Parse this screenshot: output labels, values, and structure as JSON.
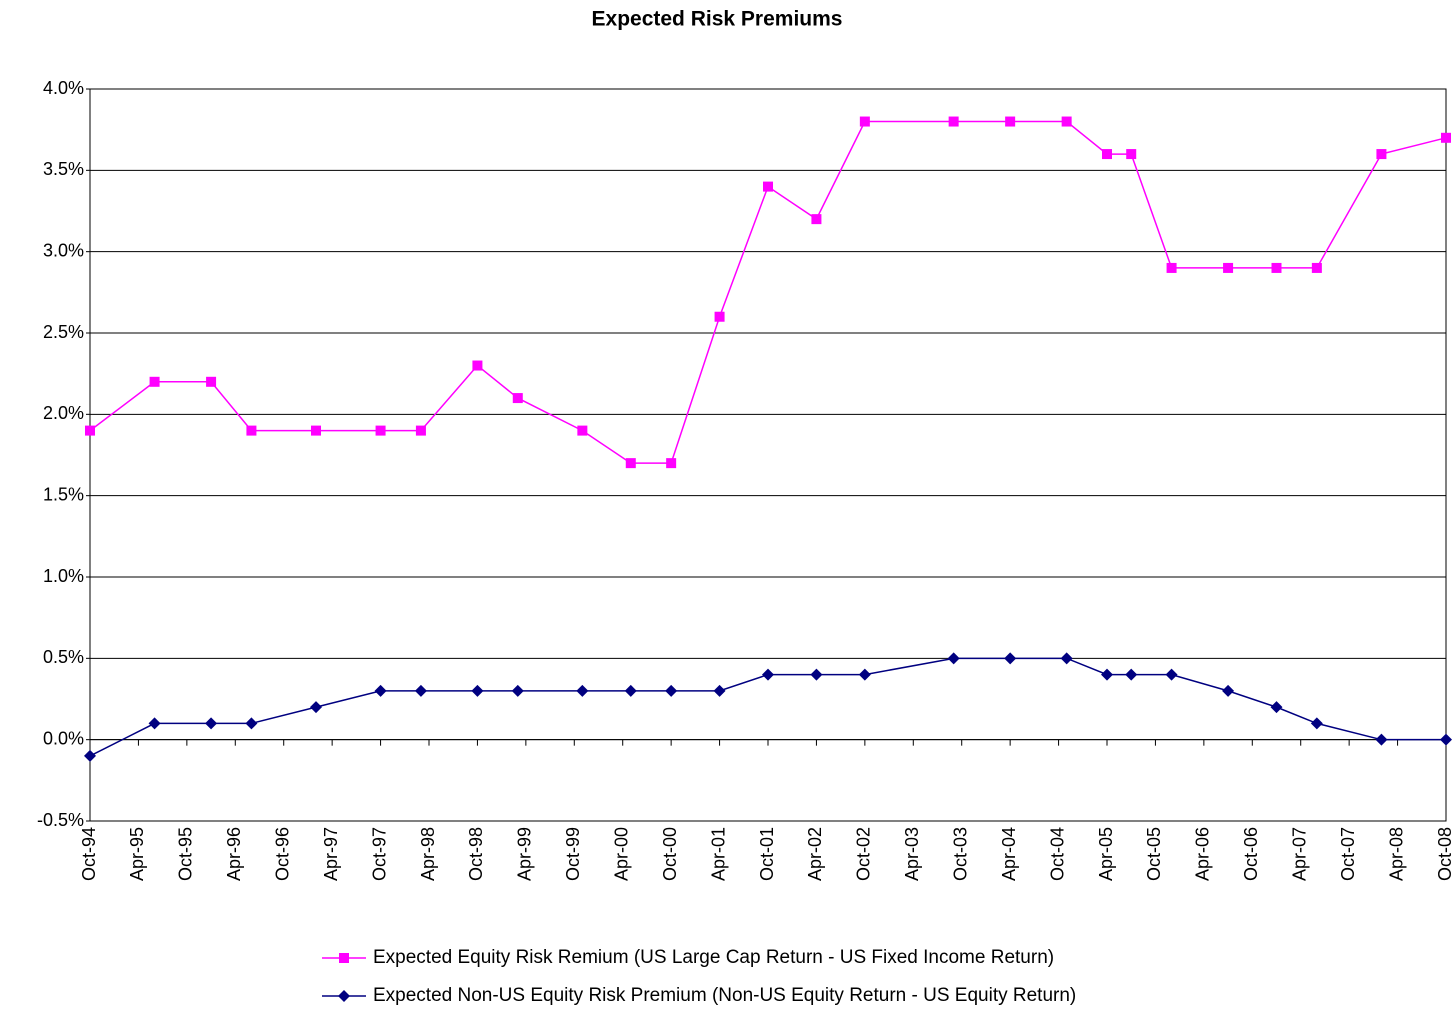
{
  "chart_data": {
    "type": "line",
    "title": "Expected Risk Premiums",
    "x": [
      "1994-10",
      "1995-06",
      "1996-01",
      "1996-06",
      "1997-02",
      "1997-10",
      "1998-03",
      "1998-10",
      "1999-03",
      "1999-11",
      "2000-05",
      "2000-10",
      "2001-04",
      "2001-10",
      "2002-04",
      "2002-10",
      "2003-09",
      "2004-04",
      "2004-11",
      "2005-04",
      "2005-07",
      "2005-12",
      "2006-07",
      "2007-01",
      "2007-06",
      "2008-02",
      "2008-10"
    ],
    "series": [
      {
        "name": "Expected Equity Risk Remium (US Large Cap Return - US Fixed Income Return)",
        "color": "#ff00ff",
        "marker": "square",
        "values": [
          1.9,
          2.2,
          2.2,
          1.9,
          1.9,
          1.9,
          1.9,
          2.3,
          2.1,
          1.9,
          1.7,
          1.7,
          2.6,
          3.4,
          3.2,
          3.8,
          3.8,
          3.8,
          3.8,
          3.6,
          3.6,
          2.9,
          2.9,
          2.9,
          2.9,
          3.6,
          3.7
        ]
      },
      {
        "name": "Expected Non-US Equity Risk Premium (Non-US Equity Return - US Equity Return)",
        "color": "#000080",
        "marker": "diamond",
        "values": [
          -0.1,
          0.1,
          0.1,
          0.1,
          0.2,
          0.3,
          0.3,
          0.3,
          0.3,
          0.3,
          0.3,
          0.3,
          0.3,
          0.4,
          0.4,
          0.4,
          0.5,
          0.5,
          0.5,
          0.4,
          0.4,
          0.4,
          0.3,
          0.2,
          0.1,
          0.0,
          0.0
        ]
      }
    ],
    "xlim": [
      "1994-10",
      "2008-10"
    ],
    "xticks": [
      {
        "value": "1994-10",
        "label": "Oct-94"
      },
      {
        "value": "1995-04",
        "label": "Apr-95"
      },
      {
        "value": "1995-10",
        "label": "Oct-95"
      },
      {
        "value": "1996-04",
        "label": "Apr-96"
      },
      {
        "value": "1996-10",
        "label": "Oct-96"
      },
      {
        "value": "1997-04",
        "label": "Apr-97"
      },
      {
        "value": "1997-10",
        "label": "Oct-97"
      },
      {
        "value": "1998-04",
        "label": "Apr-98"
      },
      {
        "value": "1998-10",
        "label": "Oct-98"
      },
      {
        "value": "1999-04",
        "label": "Apr-99"
      },
      {
        "value": "1999-10",
        "label": "Oct-99"
      },
      {
        "value": "2000-04",
        "label": "Apr-00"
      },
      {
        "value": "2000-10",
        "label": "Oct-00"
      },
      {
        "value": "2001-04",
        "label": "Apr-01"
      },
      {
        "value": "2001-10",
        "label": "Oct-01"
      },
      {
        "value": "2002-04",
        "label": "Apr-02"
      },
      {
        "value": "2002-10",
        "label": "Oct-02"
      },
      {
        "value": "2003-04",
        "label": "Apr-03"
      },
      {
        "value": "2003-10",
        "label": "Oct-03"
      },
      {
        "value": "2004-04",
        "label": "Apr-04"
      },
      {
        "value": "2004-10",
        "label": "Oct-04"
      },
      {
        "value": "2005-04",
        "label": "Apr-05"
      },
      {
        "value": "2005-10",
        "label": "Oct-05"
      },
      {
        "value": "2006-04",
        "label": "Apr-06"
      },
      {
        "value": "2006-10",
        "label": "Oct-06"
      },
      {
        "value": "2007-04",
        "label": "Apr-07"
      },
      {
        "value": "2007-10",
        "label": "Oct-07"
      },
      {
        "value": "2008-04",
        "label": "Apr-08"
      },
      {
        "value": "2008-10",
        "label": "Oct-08"
      }
    ],
    "ylim": [
      -0.5,
      4.0
    ],
    "yticks": [
      {
        "value": -0.5,
        "label": "-0.5%"
      },
      {
        "value": 0,
        "label": "0.0%"
      },
      {
        "value": 0.5,
        "label": "0.5%"
      },
      {
        "value": 1,
        "label": "1.0%"
      },
      {
        "value": 1.5,
        "label": "1.5%"
      },
      {
        "value": 2,
        "label": "2.0%"
      },
      {
        "value": 2.5,
        "label": "2.5%"
      },
      {
        "value": 3,
        "label": "3.0%"
      },
      {
        "value": 3.5,
        "label": "3.5%"
      },
      {
        "value": 4,
        "label": "4.0%"
      }
    ],
    "grid": true,
    "legend": "bottom"
  }
}
